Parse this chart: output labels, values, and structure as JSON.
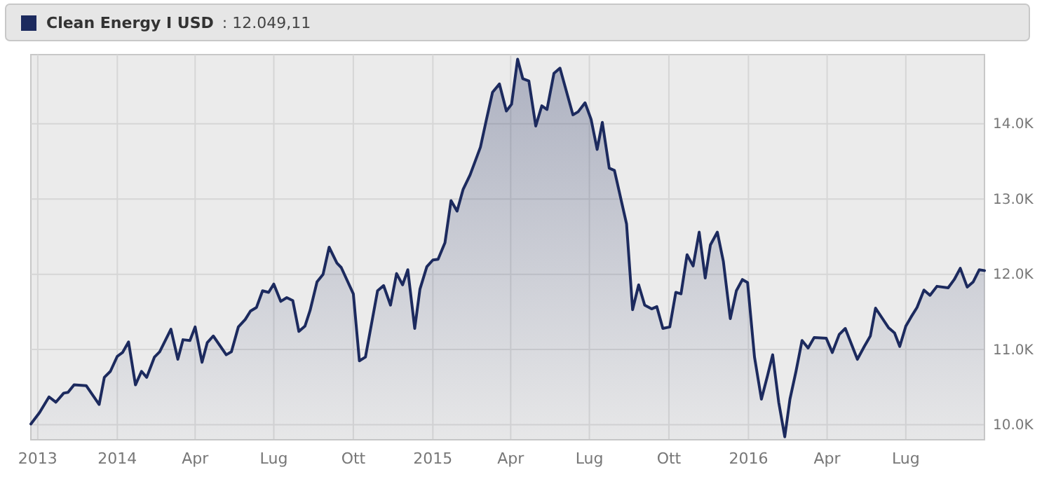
{
  "chart_data": {
    "type": "area",
    "legend": "top left",
    "grid": true,
    "annotations": [
      ": 12.049,11"
    ],
    "xlim": [
      "2013-09-23",
      "2016-09-30"
    ],
    "xticks": [
      {
        "value": "2013-10-01",
        "label": "2013"
      },
      {
        "value": "2014-01-01",
        "label": "2014"
      },
      {
        "value": "2014-04-01",
        "label": "Apr"
      },
      {
        "value": "2014-07-01",
        "label": "Lug"
      },
      {
        "value": "2014-10-01",
        "label": "Ott"
      },
      {
        "value": "2015-01-01",
        "label": "2015"
      },
      {
        "value": "2015-04-01",
        "label": "Apr"
      },
      {
        "value": "2015-07-01",
        "label": "Lug"
      },
      {
        "value": "2015-10-01",
        "label": "Ott"
      },
      {
        "value": "2016-01-01",
        "label": "2016"
      },
      {
        "value": "2016-04-01",
        "label": "Apr"
      },
      {
        "value": "2016-07-01",
        "label": "Lug"
      }
    ],
    "ylim": [
      9800,
      14920
    ],
    "yticks": [
      {
        "value": 10000,
        "label": "10.0K"
      },
      {
        "value": 11000,
        "label": "11.0K"
      },
      {
        "value": 12000,
        "label": "12.0K"
      },
      {
        "value": 13000,
        "label": "13.0K"
      },
      {
        "value": 14000,
        "label": "14.0K"
      }
    ],
    "x": [
      "2013-09-23",
      "2013-10-03",
      "2013-10-14",
      "2013-10-22",
      "2013-10-31",
      "2013-11-05",
      "2013-11-12",
      "2013-11-26",
      "2013-12-11",
      "2013-12-17",
      "2013-12-24",
      "2014-01-01",
      "2014-01-07",
      "2014-01-14",
      "2014-01-22",
      "2014-01-29",
      "2014-02-04",
      "2014-02-13",
      "2014-02-19",
      "2014-03-04",
      "2014-03-12",
      "2014-03-18",
      "2014-03-26",
      "2014-04-01",
      "2014-04-09",
      "2014-04-15",
      "2014-04-22",
      "2014-05-07",
      "2014-05-13",
      "2014-05-21",
      "2014-05-29",
      "2014-06-04",
      "2014-06-11",
      "2014-06-18",
      "2014-06-25",
      "2014-07-01",
      "2014-07-09",
      "2014-07-16",
      "2014-07-23",
      "2014-07-30",
      "2014-08-06",
      "2014-08-12",
      "2014-08-20",
      "2014-08-27",
      "2014-09-03",
      "2014-09-12",
      "2014-09-17",
      "2014-10-01",
      "2014-10-08",
      "2014-10-15",
      "2014-10-29",
      "2014-11-05",
      "2014-11-13",
      "2014-11-20",
      "2014-11-27",
      "2014-12-03",
      "2014-12-11",
      "2014-12-17",
      "2014-12-25",
      "2015-01-01",
      "2015-01-07",
      "2015-01-15",
      "2015-01-22",
      "2015-01-29",
      "2015-02-05",
      "2015-02-13",
      "2015-02-25",
      "2015-03-04",
      "2015-03-11",
      "2015-03-19",
      "2015-03-27",
      "2015-04-02",
      "2015-04-09",
      "2015-04-15",
      "2015-04-22",
      "2015-04-30",
      "2015-05-07",
      "2015-05-13",
      "2015-05-21",
      "2015-05-28",
      "2015-06-12",
      "2015-06-18",
      "2015-06-26",
      "2015-07-03",
      "2015-07-10",
      "2015-07-16",
      "2015-07-24",
      "2015-07-30",
      "2015-08-13",
      "2015-08-20",
      "2015-08-27",
      "2015-09-03",
      "2015-09-11",
      "2015-09-17",
      "2015-09-24",
      "2015-10-02",
      "2015-10-09",
      "2015-10-15",
      "2015-10-22",
      "2015-10-29",
      "2015-11-05",
      "2015-11-12",
      "2015-11-18",
      "2015-11-26",
      "2015-12-03",
      "2015-12-11",
      "2015-12-18",
      "2015-12-25",
      "2015-12-31",
      "2016-01-08",
      "2016-01-16",
      "2016-01-23",
      "2016-01-29",
      "2016-02-05",
      "2016-02-12",
      "2016-02-18",
      "2016-02-25",
      "2016-03-03",
      "2016-03-10",
      "2016-03-17",
      "2016-03-31",
      "2016-04-07",
      "2016-04-15",
      "2016-04-22",
      "2016-05-06",
      "2016-05-14",
      "2016-05-21",
      "2016-05-27",
      "2016-06-11",
      "2016-06-18",
      "2016-06-24",
      "2016-07-01",
      "2016-07-07",
      "2016-07-14",
      "2016-07-22",
      "2016-07-29",
      "2016-08-06",
      "2016-08-19",
      "2016-08-26",
      "2016-09-02",
      "2016-09-10",
      "2016-09-17",
      "2016-09-24",
      "2016-09-30"
    ],
    "series": [
      {
        "name": "Clean Energy I USD",
        "color": "#1c2a5e",
        "values": [
          10010,
          10160,
          10370,
          10300,
          10420,
          10430,
          10530,
          10520,
          10270,
          10630,
          10710,
          10910,
          10960,
          11100,
          10530,
          10710,
          10630,
          10900,
          10970,
          11270,
          10870,
          11130,
          11120,
          11300,
          10830,
          11090,
          11180,
          10930,
          10970,
          11300,
          11400,
          11510,
          11560,
          11780,
          11760,
          11870,
          11640,
          11690,
          11650,
          11240,
          11310,
          11520,
          11900,
          12000,
          12360,
          12150,
          12090,
          11740,
          10850,
          10900,
          11780,
          11850,
          11590,
          12010,
          11860,
          12060,
          11280,
          11800,
          12100,
          12190,
          12200,
          12420,
          12980,
          12840,
          13130,
          13320,
          13690,
          14060,
          14420,
          14530,
          14170,
          14260,
          14860,
          14600,
          14570,
          13970,
          14240,
          14190,
          14670,
          14740,
          14120,
          14160,
          14280,
          14060,
          13660,
          14020,
          13410,
          13380,
          12670,
          11530,
          11860,
          11590,
          11540,
          11570,
          11280,
          11300,
          11760,
          11740,
          12260,
          12110,
          12560,
          11950,
          12390,
          12560,
          12170,
          11410,
          11780,
          11930,
          11890,
          10900,
          10340,
          10650,
          10930,
          10300,
          9840,
          10340,
          10710,
          11120,
          11020,
          11160,
          11150,
          10960,
          11200,
          11280,
          10870,
          11040,
          11180,
          11550,
          11290,
          11220,
          11040,
          11310,
          11430,
          11560,
          11790,
          11720,
          11840,
          11820,
          11930,
          12080,
          11830,
          11900,
          12060,
          12049.11
        ]
      }
    ]
  }
}
